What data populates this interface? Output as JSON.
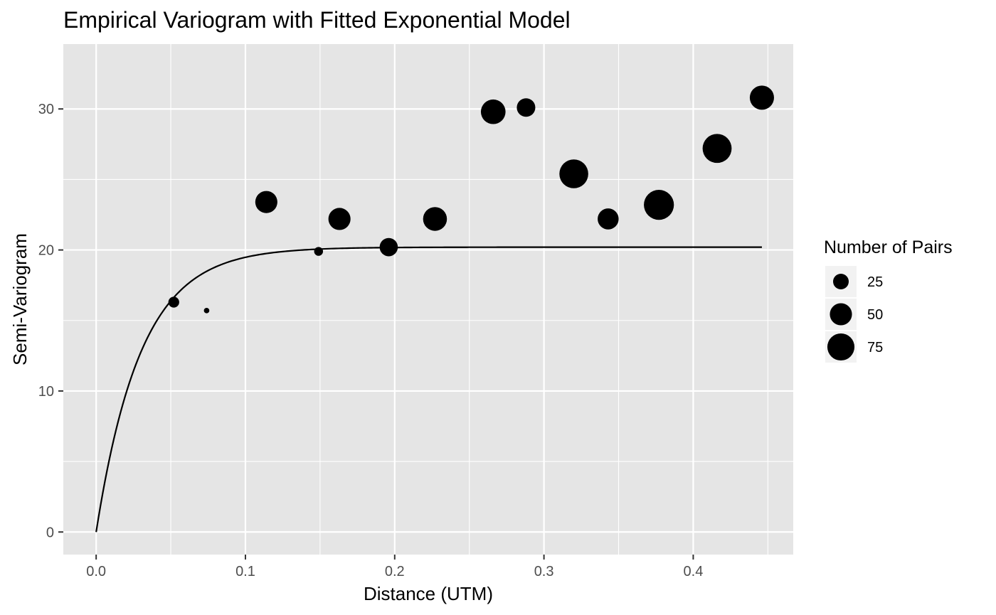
{
  "chart_data": {
    "type": "scatter",
    "title": "Empirical Variogram with Fitted Exponential Model",
    "xlabel": "Distance (UTM)",
    "ylabel": "Semi-Variogram",
    "xlim": [
      -0.022,
      0.467
    ],
    "ylim": [
      -1.6,
      34.6
    ],
    "x_ticks": [
      0.0,
      0.1,
      0.2,
      0.3,
      0.4
    ],
    "x_tick_labels": [
      "0.0",
      "0.1",
      "0.2",
      "0.3",
      "0.4"
    ],
    "y_ticks": [
      0,
      10,
      20,
      30
    ],
    "y_tick_labels": [
      "0",
      "10",
      "20",
      "30"
    ],
    "grid": true,
    "background": "#e5e5e5",
    "grid_color": "#ffffff",
    "point_color": "#000000",
    "line_color": "#000000",
    "points": [
      {
        "x": 0.052,
        "y": 16.3,
        "np": 12
      },
      {
        "x": 0.074,
        "y": 15.7,
        "np": 3
      },
      {
        "x": 0.114,
        "y": 23.4,
        "np": 50
      },
      {
        "x": 0.149,
        "y": 19.9,
        "np": 8
      },
      {
        "x": 0.163,
        "y": 22.2,
        "np": 50
      },
      {
        "x": 0.196,
        "y": 20.2,
        "np": 34
      },
      {
        "x": 0.227,
        "y": 22.2,
        "np": 58
      },
      {
        "x": 0.266,
        "y": 29.8,
        "np": 62
      },
      {
        "x": 0.288,
        "y": 30.1,
        "np": 35
      },
      {
        "x": 0.32,
        "y": 25.4,
        "np": 85
      },
      {
        "x": 0.343,
        "y": 22.2,
        "np": 45
      },
      {
        "x": 0.377,
        "y": 23.2,
        "np": 92
      },
      {
        "x": 0.416,
        "y": 27.2,
        "np": 86
      },
      {
        "x": 0.446,
        "y": 30.8,
        "np": 60
      }
    ],
    "model": {
      "name": "Exponential",
      "sill": 20.2,
      "range": 0.03,
      "nugget": 0,
      "x_max": 0.446
    },
    "legend": {
      "title": "Number of Pairs",
      "position": "right",
      "entries": [
        {
          "label": "25",
          "np": 25
        },
        {
          "label": "50",
          "np": 50
        },
        {
          "label": "75",
          "np": 75
        }
      ]
    }
  }
}
